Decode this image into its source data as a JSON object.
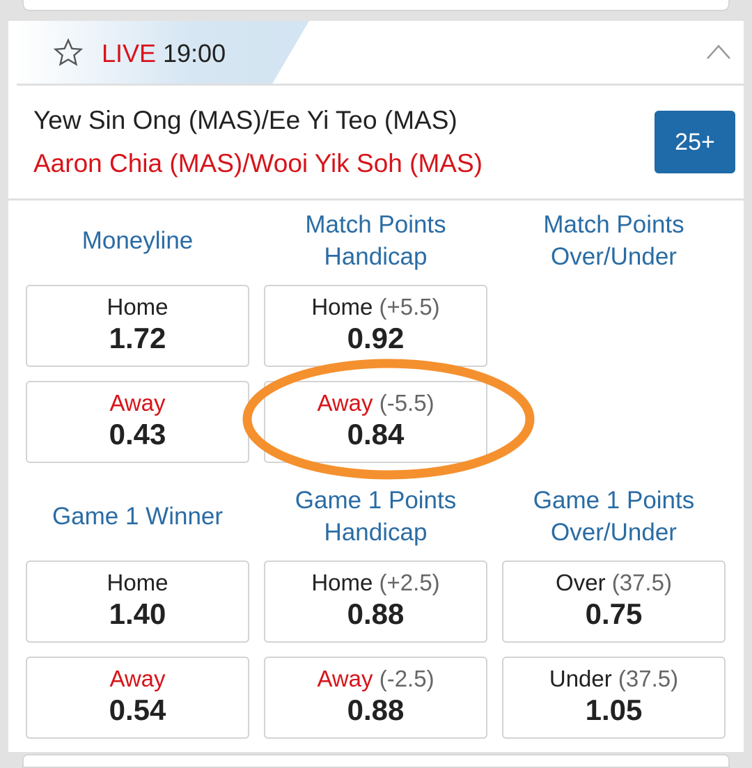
{
  "header": {
    "live_label": "LIVE",
    "time": "19:00",
    "favorite_icon": "star-outline-icon",
    "collapse_icon": "chevron-up-icon"
  },
  "match": {
    "home": "Yew Sin Ong (MAS)/Ee Yi Teo (MAS)",
    "away": "Aaron Chia (MAS)/Wooi Yik Soh (MAS)",
    "more_markets": "25+"
  },
  "markets": [
    {
      "title": "Moneyline",
      "selections": [
        {
          "label": "Home",
          "handicap": "",
          "odds": "1.72"
        },
        {
          "label": "Away",
          "handicap": "",
          "odds": "0.43"
        }
      ]
    },
    {
      "title": "Match Points Handicap",
      "selections": [
        {
          "label": "Home",
          "handicap": "(+5.5)",
          "odds": "0.92"
        },
        {
          "label": "Away",
          "handicap": "(-5.5)",
          "odds": "0.84",
          "highlighted": true
        }
      ]
    },
    {
      "title": "Match Points Over/Under",
      "selections": []
    },
    {
      "title": "Game 1 Winner",
      "selections": [
        {
          "label": "Home",
          "handicap": "",
          "odds": "1.40"
        },
        {
          "label": "Away",
          "handicap": "",
          "odds": "0.54"
        }
      ]
    },
    {
      "title": "Game 1 Points Handicap",
      "selections": [
        {
          "label": "Home",
          "handicap": "(+2.5)",
          "odds": "0.88"
        },
        {
          "label": "Away",
          "handicap": "(-2.5)",
          "odds": "0.88"
        }
      ]
    },
    {
      "title": "Game 1 Points Over/Under",
      "selections": [
        {
          "label": "Over",
          "handicap": "(37.5)",
          "odds": "0.75"
        },
        {
          "label": "Under",
          "handicap": "(37.5)",
          "odds": "1.05"
        }
      ]
    }
  ],
  "colors": {
    "live": "#d7141a",
    "accent": "#1f6aa8",
    "market_title": "#2a6ca4",
    "highlight_annotation": "#f5902e"
  }
}
